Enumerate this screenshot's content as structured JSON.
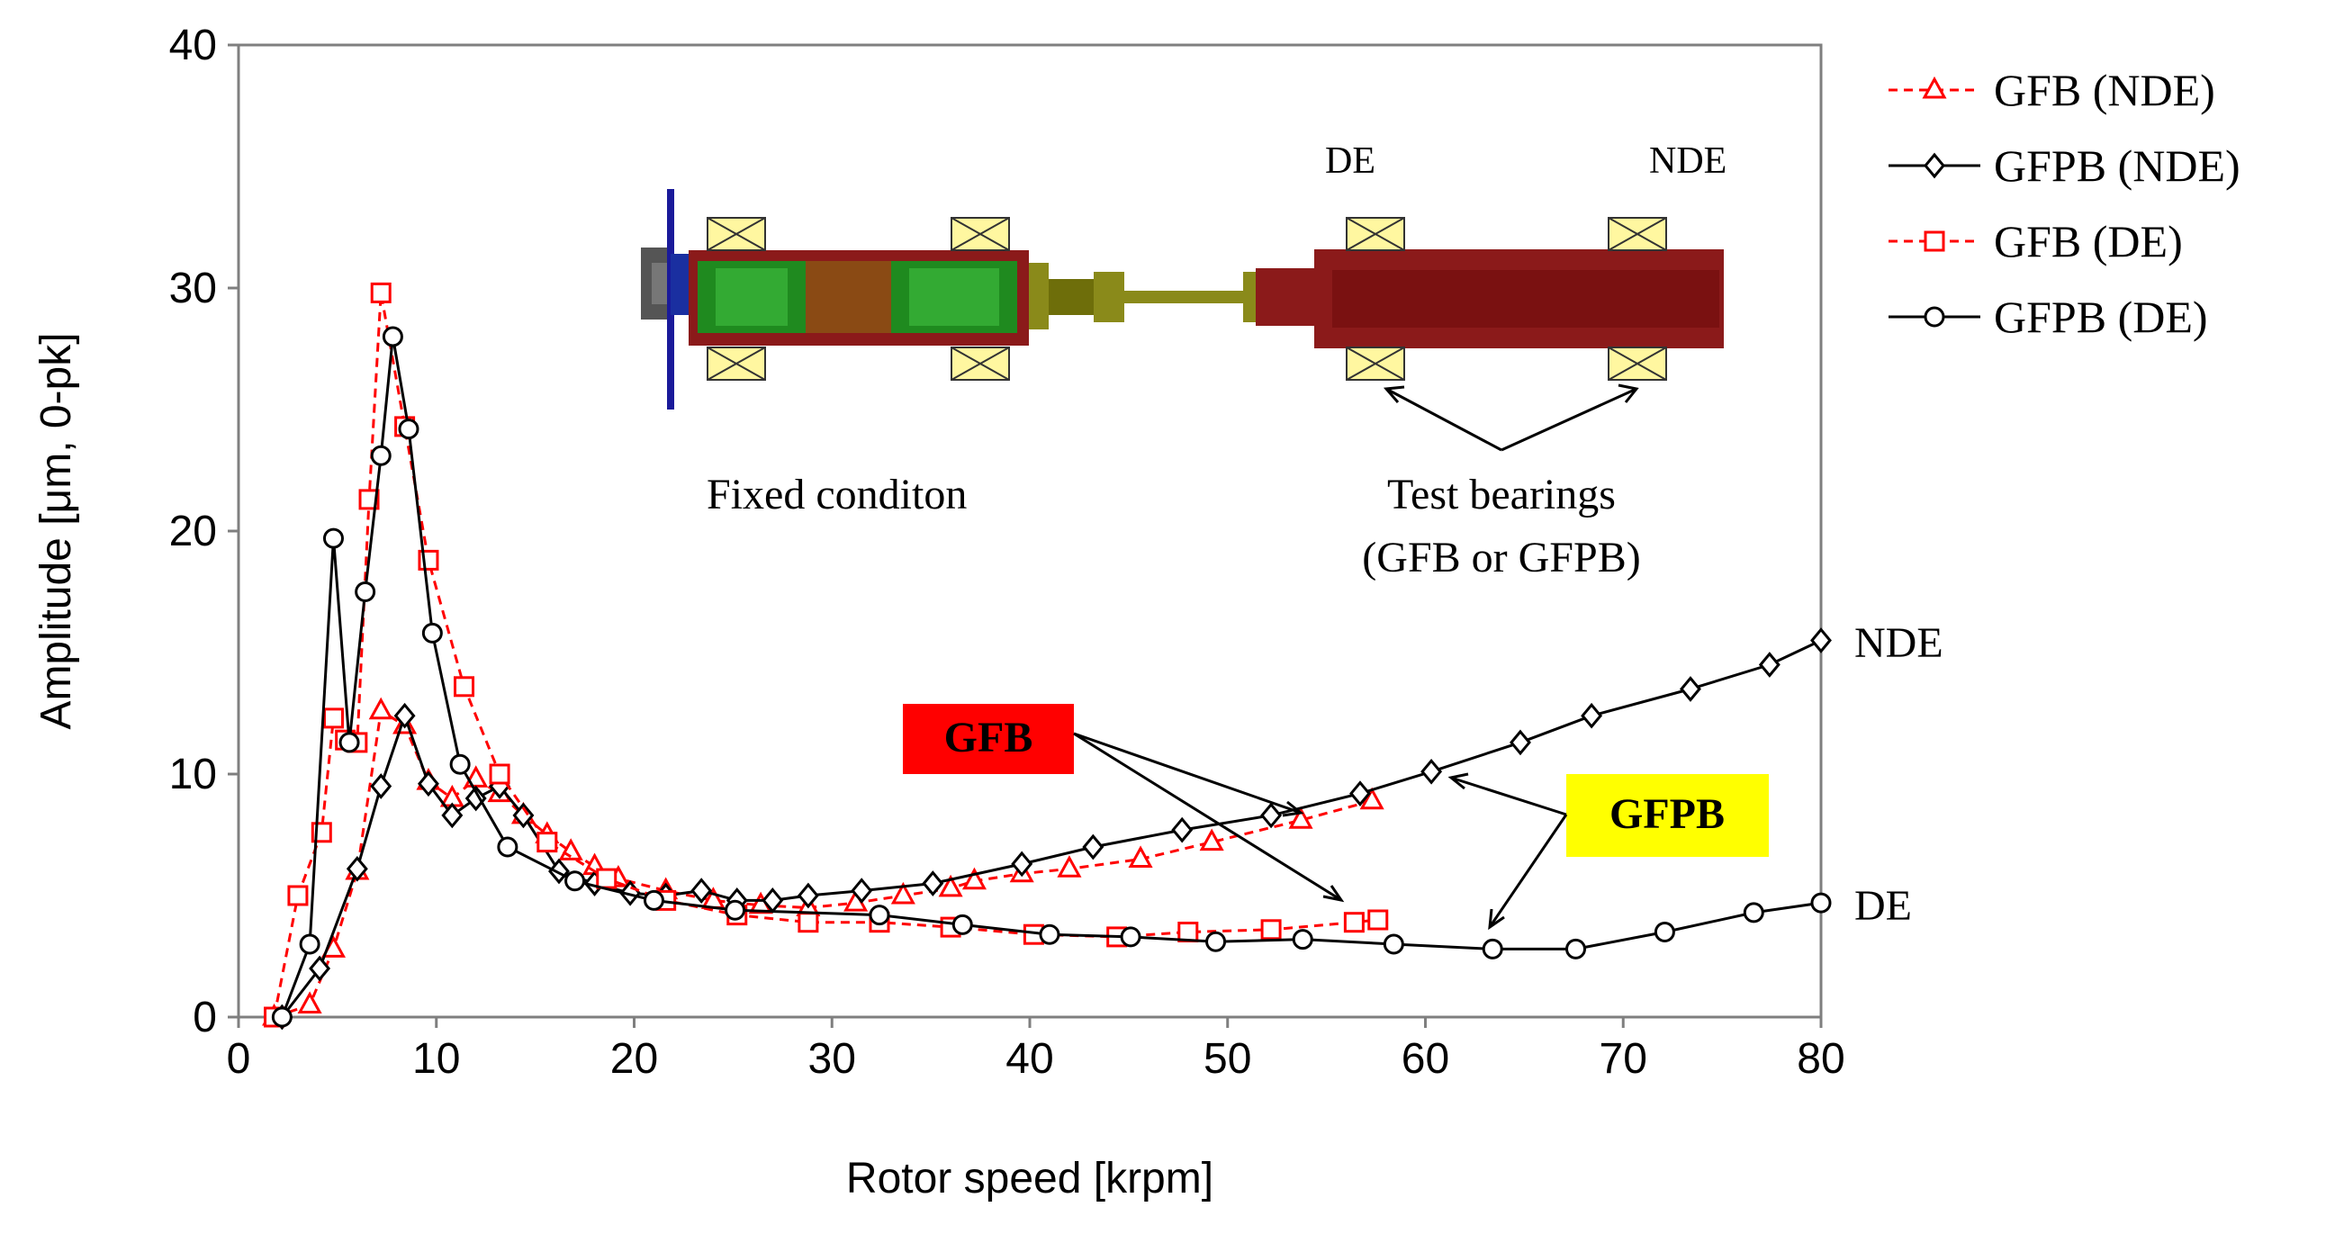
{
  "chart_data": {
    "type": "line",
    "title": "",
    "xlabel": "Rotor speed [krpm]",
    "ylabel": "Amplitude [μm, 0-pk]",
    "xlim": [
      0,
      80
    ],
    "ylim": [
      0,
      40
    ],
    "xticks": [
      0,
      10,
      20,
      30,
      40,
      50,
      60,
      70,
      80
    ],
    "yticks": [
      0,
      10,
      20,
      30,
      40
    ],
    "grid": false,
    "legend_position": "right",
    "series": [
      {
        "name": "GFB (NDE)",
        "color": "#ff0000",
        "dashed": true,
        "marker": "triangle",
        "x": [
          1.8,
          3.6,
          4.8,
          6.0,
          7.2,
          8.4,
          9.6,
          10.8,
          12.0,
          13.2,
          14.4,
          15.6,
          16.8,
          18.0,
          19.2,
          21.6,
          24.0,
          26.4,
          28.8,
          31.2,
          33.6,
          36.0,
          37.2,
          39.6,
          42.0,
          45.6,
          49.2,
          53.7,
          57.3
        ],
        "y": [
          0.0,
          0.5,
          2.8,
          6.0,
          12.6,
          12.0,
          9.7,
          9.0,
          9.8,
          9.2,
          8.3,
          7.5,
          6.8,
          6.2,
          5.7,
          5.2,
          4.8,
          4.6,
          4.5,
          4.7,
          5.0,
          5.3,
          5.6,
          5.9,
          6.1,
          6.5,
          7.2,
          8.1,
          8.9
        ]
      },
      {
        "name": "GFPB (NDE)",
        "color": "#000000",
        "dashed": false,
        "marker": "diamond",
        "x": [
          2.2,
          4.1,
          6.0,
          7.2,
          8.4,
          9.6,
          10.8,
          12.0,
          13.2,
          14.4,
          16.2,
          18.0,
          19.8,
          21.6,
          23.4,
          25.2,
          27.0,
          28.8,
          31.5,
          35.1,
          39.6,
          43.2,
          47.7,
          52.2,
          56.7,
          60.3,
          64.8,
          68.4,
          73.4,
          77.4,
          80.0
        ],
        "y": [
          0.0,
          2.0,
          6.1,
          9.5,
          12.4,
          9.6,
          8.3,
          9.0,
          9.5,
          8.3,
          6.0,
          5.5,
          5.1,
          5.0,
          5.2,
          4.8,
          4.8,
          5.0,
          5.2,
          5.5,
          6.3,
          7.0,
          7.7,
          8.3,
          9.2,
          10.1,
          11.3,
          12.4,
          13.5,
          14.5,
          15.5
        ]
      },
      {
        "name": "GFB (DE)",
        "color": "#ff0000",
        "dashed": true,
        "marker": "square",
        "x": [
          1.8,
          3.0,
          4.2,
          4.8,
          5.4,
          6.0,
          6.6,
          7.2,
          8.4,
          9.6,
          11.4,
          13.2,
          15.6,
          18.6,
          21.6,
          25.2,
          28.8,
          32.4,
          36.0,
          40.2,
          44.4,
          48.0,
          52.2,
          56.4,
          57.6
        ],
        "y": [
          0.0,
          5.0,
          7.6,
          12.3,
          11.4,
          11.3,
          21.3,
          29.8,
          24.3,
          18.8,
          13.6,
          10.0,
          7.2,
          5.7,
          4.8,
          4.2,
          3.9,
          3.9,
          3.7,
          3.4,
          3.3,
          3.5,
          3.6,
          3.9,
          4.0
        ]
      },
      {
        "name": "GFPB (DE)",
        "color": "#000000",
        "dashed": false,
        "marker": "circle",
        "x": [
          2.2,
          3.6,
          4.8,
          5.6,
          6.4,
          7.2,
          7.8,
          8.6,
          9.8,
          11.2,
          13.6,
          17.0,
          21.0,
          25.1,
          32.4,
          36.6,
          41.0,
          45.1,
          49.4,
          53.8,
          58.4,
          63.4,
          67.6,
          72.1,
          76.6,
          80.0
        ],
        "y": [
          0.0,
          3.0,
          19.7,
          11.3,
          17.5,
          23.1,
          28.0,
          24.2,
          15.8,
          10.4,
          7.0,
          5.6,
          4.8,
          4.4,
          4.2,
          3.8,
          3.4,
          3.3,
          3.1,
          3.2,
          3.0,
          2.8,
          2.8,
          3.5,
          4.3,
          4.7
        ]
      }
    ],
    "annotations": {
      "end_label_nde": "NDE",
      "end_label_de": "DE",
      "gfb_box": "GFB",
      "gfpb_box": "GFPB",
      "gfb_box_color": "#ff0000",
      "gfpb_box_color": "#ffff00",
      "inset_label_de": "DE",
      "inset_label_nde": "NDE",
      "fixed_condition": "Fixed conditon",
      "test_bearings_line1": "Test bearings",
      "test_bearings_line2": "(GFB or GFPB)"
    }
  }
}
